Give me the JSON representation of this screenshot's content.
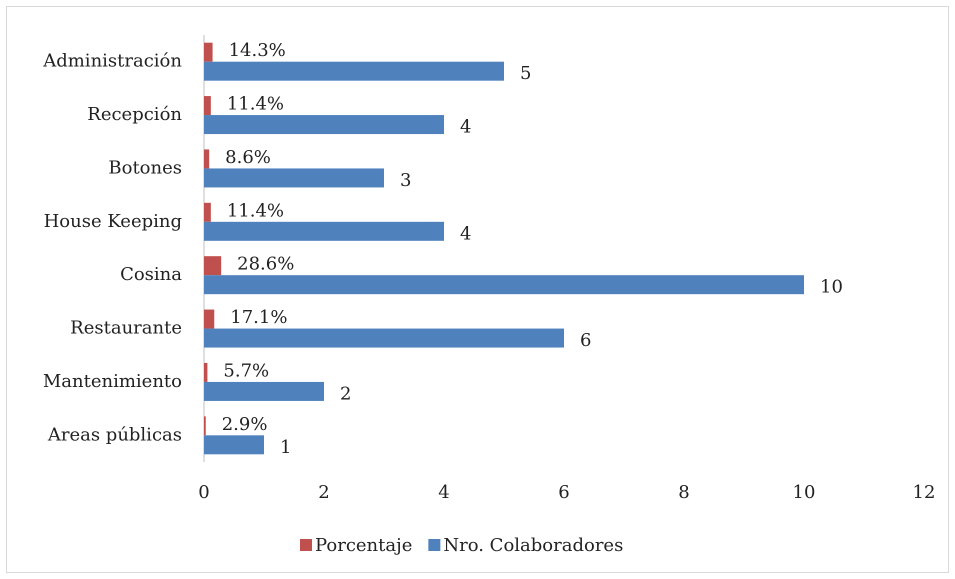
{
  "chart_data": {
    "type": "bar",
    "orientation": "horizontal",
    "categories": [
      "Administración",
      "Recepción",
      "Botones",
      "House Keeping",
      "Cosina",
      "Restaurante",
      "Mantenimiento",
      "Areas públicas"
    ],
    "series": [
      {
        "name": "Porcentaje",
        "color": "#c0504d",
        "values": [
          0.143,
          0.114,
          0.086,
          0.114,
          0.286,
          0.171,
          0.057,
          0.029
        ],
        "value_labels": [
          "14.3%",
          "11.4%",
          "8.6%",
          "11.4%",
          "28.6%",
          "17.1%",
          "5.7%",
          "2.9%"
        ]
      },
      {
        "name": "Nro. Colaboradores",
        "color": "#4f81bd",
        "values": [
          5,
          4,
          3,
          4,
          10,
          6,
          2,
          1
        ]
      }
    ],
    "xlim": [
      0,
      12
    ],
    "xticks": [
      0,
      2,
      4,
      6,
      8,
      10,
      12
    ],
    "grid": false,
    "legend": "bottom"
  }
}
